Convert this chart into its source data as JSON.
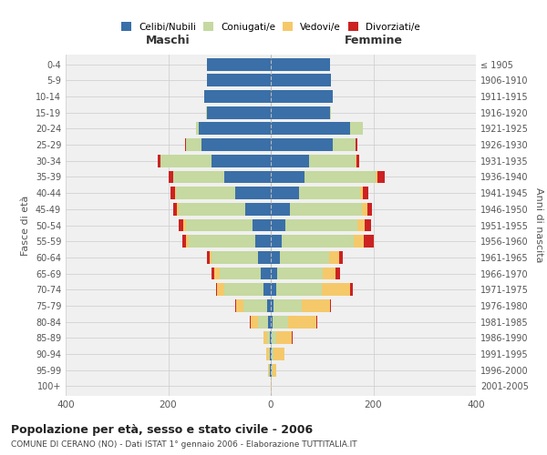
{
  "age_groups": [
    "0-4",
    "5-9",
    "10-14",
    "15-19",
    "20-24",
    "25-29",
    "30-34",
    "35-39",
    "40-44",
    "45-49",
    "50-54",
    "55-59",
    "60-64",
    "65-69",
    "70-74",
    "75-79",
    "80-84",
    "85-89",
    "90-94",
    "95-99",
    "100+"
  ],
  "birth_years": [
    "2001-2005",
    "1996-2000",
    "1991-1995",
    "1986-1990",
    "1981-1985",
    "1976-1980",
    "1971-1975",
    "1966-1970",
    "1961-1965",
    "1956-1960",
    "1951-1955",
    "1946-1950",
    "1941-1945",
    "1936-1940",
    "1931-1935",
    "1926-1930",
    "1921-1925",
    "1916-1920",
    "1911-1915",
    "1906-1910",
    "≤ 1905"
  ],
  "colors": {
    "celibi": "#3a6fa8",
    "coniugati": "#c5d9a0",
    "vedovi": "#f5c96a",
    "divorziati": "#cc2222"
  },
  "maschi": {
    "celibi": [
      125,
      125,
      130,
      125,
      140,
      135,
      115,
      90,
      70,
      50,
      35,
      30,
      25,
      20,
      15,
      8,
      5,
      2,
      1,
      1,
      0
    ],
    "coniugati": [
      0,
      0,
      0,
      2,
      5,
      30,
      100,
      100,
      115,
      130,
      130,
      130,
      90,
      80,
      75,
      45,
      20,
      5,
      3,
      2,
      0
    ],
    "vedovi": [
      0,
      0,
      0,
      0,
      0,
      0,
      1,
      1,
      2,
      3,
      5,
      5,
      5,
      10,
      15,
      15,
      15,
      8,
      5,
      2,
      0
    ],
    "divorziati": [
      0,
      0,
      0,
      0,
      0,
      2,
      5,
      8,
      8,
      8,
      10,
      8,
      5,
      5,
      2,
      1,
      1,
      0,
      0,
      0,
      0
    ]
  },
  "femmine": {
    "celibi": [
      115,
      118,
      120,
      115,
      155,
      120,
      75,
      65,
      55,
      38,
      28,
      22,
      18,
      12,
      10,
      5,
      3,
      2,
      1,
      1,
      0
    ],
    "coniugati": [
      0,
      0,
      0,
      2,
      25,
      45,
      90,
      140,
      120,
      140,
      140,
      140,
      95,
      90,
      90,
      55,
      30,
      8,
      5,
      2,
      0
    ],
    "vedovi": [
      0,
      0,
      0,
      0,
      0,
      1,
      2,
      3,
      5,
      10,
      15,
      20,
      20,
      25,
      55,
      55,
      55,
      30,
      20,
      8,
      2
    ],
    "divorziati": [
      0,
      0,
      0,
      0,
      0,
      3,
      5,
      15,
      10,
      10,
      12,
      18,
      8,
      8,
      5,
      3,
      2,
      2,
      1,
      0,
      0
    ]
  },
  "title": "Popolazione per età, sesso e stato civile - 2006",
  "subtitle": "COMUNE DI CERANO (NO) - Dati ISTAT 1° gennaio 2006 - Elaborazione TUTTITALIA.IT",
  "xlabel_left": "Maschi",
  "xlabel_right": "Femmine",
  "ylabel_left": "Fasce di età",
  "ylabel_right": "Anni di nascita",
  "xlim": 400,
  "legend_labels": [
    "Celibi/Nubili",
    "Coniugati/e",
    "Vedovi/e",
    "Divorziati/e"
  ],
  "bg_color": "#ffffff",
  "grid_color": "#cccccc"
}
